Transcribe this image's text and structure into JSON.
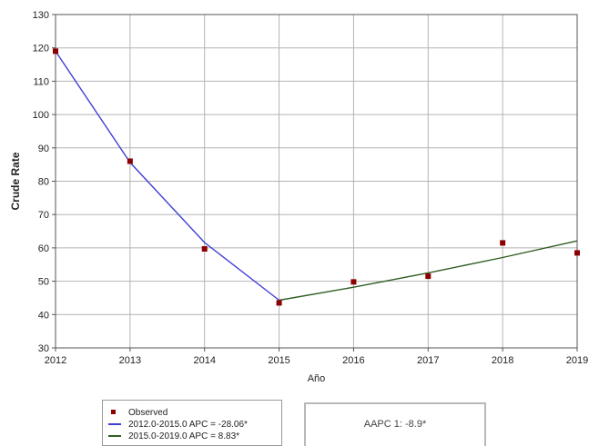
{
  "chart_data": {
    "type": "line",
    "xlabel": "Año",
    "ylabel": "Crude Rate",
    "xlim": [
      2012,
      2019
    ],
    "ylim": [
      30,
      130
    ],
    "x_ticks": [
      "2012",
      "2013",
      "2014",
      "2015",
      "2016",
      "2017",
      "2018",
      "2019"
    ],
    "y_ticks": [
      "30",
      "40",
      "50",
      "60",
      "70",
      "80",
      "90",
      "100",
      "110",
      "120",
      "130"
    ],
    "grid": true,
    "observed": {
      "name": "Observed",
      "color": "#8b0000",
      "points": [
        {
          "x": 2012,
          "y": 119.0
        },
        {
          "x": 2013,
          "y": 86.0
        },
        {
          "x": 2014,
          "y": 59.7
        },
        {
          "x": 2015,
          "y": 43.5
        },
        {
          "x": 2016,
          "y": 49.8
        },
        {
          "x": 2017,
          "y": 51.5
        },
        {
          "x": 2018,
          "y": 61.5
        },
        {
          "x": 2019,
          "y": 58.5
        }
      ]
    },
    "series": [
      {
        "name": "2012.0-2015.0 APC  = -28.06*",
        "color": "#3f3fd6",
        "points": [
          {
            "x": 2012,
            "y": 119.0
          },
          {
            "x": 2013,
            "y": 85.6
          },
          {
            "x": 2014,
            "y": 61.6
          },
          {
            "x": 2015,
            "y": 44.3
          }
        ]
      },
      {
        "name": "2015.0-2019.0 APC  =  8.83*",
        "color": "#2f5e22",
        "points": [
          {
            "x": 2015,
            "y": 44.3
          },
          {
            "x": 2016,
            "y": 48.2
          },
          {
            "x": 2017,
            "y": 52.5
          },
          {
            "x": 2018,
            "y": 57.1
          },
          {
            "x": 2019,
            "y": 62.1
          }
        ]
      }
    ]
  },
  "legend": {
    "observed_label": "Observed",
    "series1_label": "2012.0-2015.0 APC  = -28.06*",
    "series2_label": "2015.0-2019.0 APC  =  8.83*"
  },
  "aapc": {
    "label": "AAPC 1: -8.9*"
  }
}
